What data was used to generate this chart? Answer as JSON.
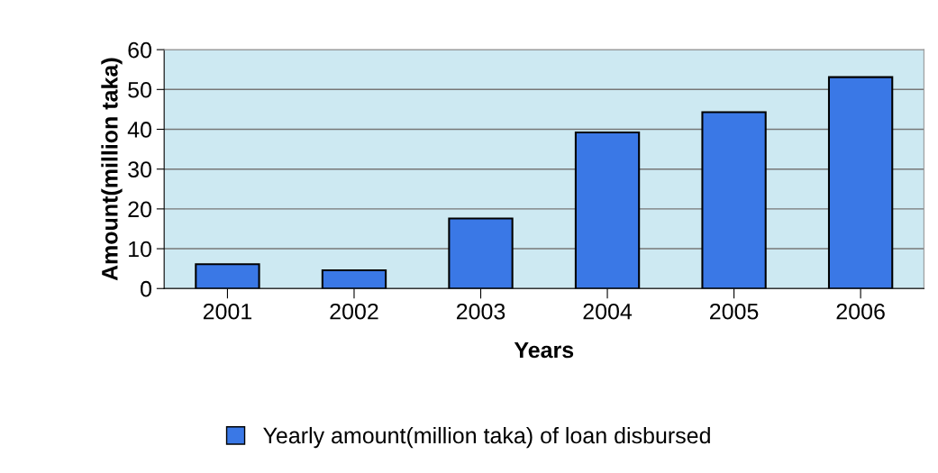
{
  "chart_data": {
    "type": "bar",
    "xlabel": "Years",
    "ylabel": "Amount(million taka)",
    "categories": [
      "2001",
      "2002",
      "2003",
      "2004",
      "2005",
      "2006"
    ],
    "series": [
      {
        "name": "Yearly amount(million taka) of loan disbursed",
        "color": "#3a78e6",
        "values": [
          6.1,
          4.6,
          17.6,
          39.2,
          44.3,
          53.1
        ]
      }
    ],
    "ylim": [
      0,
      60
    ],
    "yticks": [
      0,
      10,
      20,
      30,
      40,
      50,
      60
    ],
    "grid": "y",
    "legend": "bottom"
  }
}
